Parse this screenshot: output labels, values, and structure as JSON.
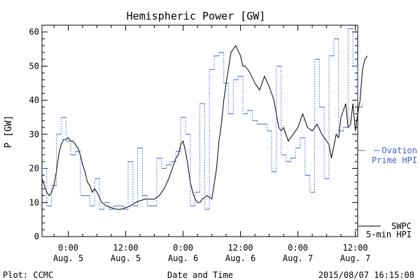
{
  "chart_data": {
    "type": "line",
    "title": "Hemispheric Power [GW]",
    "ylabel": "P [GW]",
    "xlabel": "Date and Time",
    "ylim": [
      0,
      62
    ],
    "yticks": [
      0,
      10,
      20,
      30,
      40,
      50,
      60
    ],
    "x_unit": "hours since 2015-08-04 00:00 UT",
    "xlim": [
      18.5,
      84.5
    ],
    "xticks": [
      {
        "x": 24,
        "time": "0:00",
        "date": "Aug. 5"
      },
      {
        "x": 36,
        "time": "12:00",
        "date": "Aug. 5"
      },
      {
        "x": 48,
        "time": "0:00",
        "date": "Aug. 6"
      },
      {
        "x": 60,
        "time": "12:00",
        "date": "Aug. 6"
      },
      {
        "x": 72,
        "time": "0:00",
        "date": "Aug. 7"
      },
      {
        "x": 84,
        "time": "12:00",
        "date": "Aug. 7"
      }
    ],
    "grid": false,
    "series": [
      {
        "name": "SWPC 5-min HPI",
        "style": "solid",
        "color": "#000000",
        "x": [
          18.5,
          19,
          19.5,
          20,
          20.5,
          21,
          21.5,
          22,
          22.5,
          23,
          23.5,
          24,
          24.5,
          25,
          25.5,
          26,
          26.5,
          27,
          27.5,
          28,
          28.5,
          29,
          29.5,
          30,
          31,
          32,
          33,
          34,
          35,
          36,
          37,
          38,
          39,
          40,
          41,
          42,
          43,
          44,
          45,
          46,
          46.5,
          47,
          47.5,
          48,
          48.5,
          49,
          49.5,
          50,
          50.5,
          51,
          51.5,
          52,
          53,
          54,
          55,
          55.5,
          56,
          56.5,
          57,
          58,
          59,
          60,
          60.5,
          61,
          62,
          63,
          64,
          65,
          66,
          67,
          67.5,
          68,
          68.5,
          69,
          70,
          70.5,
          71,
          72,
          73,
          74,
          75,
          76,
          77,
          78,
          78.5,
          79,
          80,
          80.5,
          81,
          82,
          82.5,
          83,
          83.5,
          84,
          84.5,
          85,
          85.5,
          86,
          86.5
        ],
        "values": [
          17,
          15,
          13,
          12,
          13,
          15,
          19,
          24,
          27,
          28.5,
          28.5,
          29,
          28,
          28,
          27,
          26,
          24,
          21,
          19,
          16,
          15,
          13,
          14,
          13,
          10,
          9,
          8.5,
          8,
          8,
          8.5,
          9,
          10,
          10.5,
          11,
          11,
          11,
          12,
          14,
          17,
          21,
          23,
          24,
          27,
          28,
          25,
          21,
          16,
          13,
          11,
          10,
          10,
          11,
          12,
          11,
          20,
          28,
          33,
          40,
          45,
          54,
          56,
          53,
          50,
          50,
          48,
          45,
          43,
          47,
          44,
          40,
          36,
          32,
          31,
          32,
          28,
          29,
          30,
          32,
          36,
          32,
          31,
          33,
          30,
          28,
          27,
          23,
          30,
          29,
          35,
          39,
          32,
          33,
          39,
          31,
          36,
          40,
          49,
          52,
          53
        ]
      },
      {
        "name": "Ovation Prime HPI",
        "style": "dotted-step",
        "color": "#3f63c8",
        "x": [
          18.5,
          19.5,
          20.5,
          21.5,
          22.5,
          23.5,
          24.5,
          25.5,
          26.5,
          27.5,
          28.5,
          29.5,
          30.5,
          31.5,
          32.5,
          33.5,
          34.5,
          35.5,
          36.5,
          37.5,
          38.5,
          39.5,
          40.5,
          41.5,
          42.5,
          43.5,
          44.5,
          45.5,
          46.5,
          47.5,
          48.5,
          49.5,
          50.5,
          51.5,
          52.5,
          53.5,
          54.5,
          55.5,
          56.5,
          57.5,
          58.5,
          59.5,
          60.5,
          61.5,
          62.5,
          63.5,
          64.5,
          65.5,
          66.5,
          67.5,
          68.5,
          69.5,
          70.5,
          71.5,
          72.5,
          73.5,
          74.5,
          75.5,
          76.5,
          77.5,
          78.5,
          79.5,
          80.5,
          81.5,
          82.5,
          83.5,
          84.5,
          85.5
        ],
        "values": [
          20,
          9,
          15,
          30,
          35,
          28,
          24,
          25,
          12,
          12,
          9,
          17,
          8,
          10,
          8,
          9,
          9,
          8,
          22,
          9,
          26,
          12,
          9,
          9,
          23,
          20,
          21,
          22,
          25,
          35,
          30,
          9,
          13,
          39,
          8,
          49,
          53,
          54,
          45,
          36,
          46,
          47,
          36,
          37,
          34,
          33,
          33,
          31,
          19,
          50,
          24,
          22,
          23,
          26,
          29,
          18,
          13,
          52,
          38,
          17,
          53,
          58,
          31,
          32,
          61,
          50,
          39,
          38
        ]
      }
    ],
    "legend": {
      "position": "right",
      "entries": [
        {
          "line1": "Ovation",
          "line2": "Prime HPI",
          "color": "#3f63c8",
          "style": "dashed"
        },
        {
          "line1": "SWPC",
          "line2": "5-min HPI",
          "color": "#000000",
          "style": "solid"
        }
      ]
    }
  },
  "footer": {
    "left": "Plot: CCMC",
    "center": "Date and Time",
    "right": "2015/08/07 16:15:08"
  },
  "colors": {
    "axis": "#000000",
    "ovation": "#3f63c8",
    "background": "#ffffff"
  }
}
